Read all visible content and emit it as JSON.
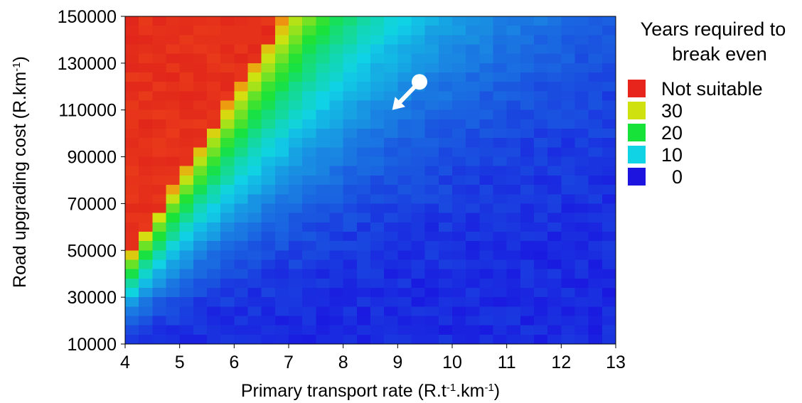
{
  "chart_data": {
    "type": "heatmap",
    "xlabel": {
      "parts": [
        {
          "text": "Primary transport rate (R.t",
          "sup": false
        },
        {
          "text": "-1",
          "sup": true
        },
        {
          "text": ".km",
          "sup": false
        },
        {
          "text": "-1",
          "sup": true
        },
        {
          "text": ")",
          "sup": false
        }
      ]
    },
    "ylabel": {
      "parts": [
        {
          "text": "Road upgrading cost (R.km",
          "sup": false
        },
        {
          "text": "-1",
          "sup": true
        },
        {
          "text": ")",
          "sup": false
        }
      ]
    },
    "x_ticks": [
      "4",
      "5",
      "6",
      "7",
      "8",
      "9",
      "10",
      "11",
      "12",
      "13"
    ],
    "y_ticks": [
      "10000",
      "30000",
      "50000",
      "70000",
      "90000",
      "110000",
      "130000",
      "150000"
    ],
    "xlim": [
      4,
      13
    ],
    "ylim": [
      10000,
      150000
    ],
    "grid": false,
    "legend_position": "right",
    "legend": {
      "title_lines": [
        "Years required to",
        "break even"
      ],
      "entries": [
        {
          "label": "Not suitable",
          "color": "#e8251c"
        },
        {
          "label": "30",
          "color": "#cfe10f"
        },
        {
          "label": "20",
          "color": "#16e23a"
        },
        {
          "label": "10",
          "color": "#11d3e6"
        },
        {
          "label": "0",
          "color": "#1d14e0"
        }
      ]
    },
    "color_scale": [
      {
        "value": 0,
        "color": "#1a18e0"
      },
      {
        "value": 2,
        "color": "#1a4ee0"
      },
      {
        "value": 5,
        "color": "#1a86e2"
      },
      {
        "value": 10,
        "color": "#10d2e6"
      },
      {
        "value": 20,
        "color": "#18e238"
      },
      {
        "value": 30,
        "color": "#d2e210"
      },
      {
        "value": 34,
        "color": "#eda010"
      },
      {
        "value": 38,
        "color": "#ea5214"
      }
    ],
    "not_suitable_color": "#e5301a",
    "model": {
      "description": "",
      "years_formula_params": {
        "boundary_cost_at_x4": 45000,
        "boundary_cost_slope_per_unit_x": 36000,
        "scale_years": 34
      }
    },
    "marker": {
      "type": "arrow",
      "color": "#ffffff",
      "from": {
        "x": 9.4,
        "y": 122000
      },
      "to": {
        "x": 8.9,
        "y": 110000
      }
    }
  }
}
